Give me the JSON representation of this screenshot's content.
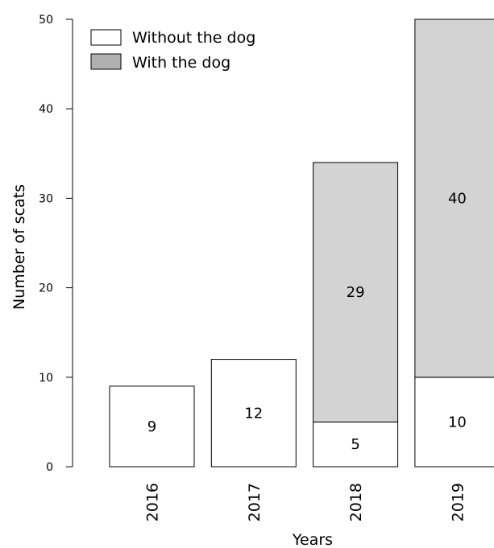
{
  "chart_data": {
    "type": "bar",
    "stacked": true,
    "categories": [
      "2016",
      "2017",
      "2018",
      "2019"
    ],
    "series": [
      {
        "name": "Without the dog",
        "values": [
          9,
          12,
          5,
          10
        ],
        "color": "#ffffff"
      },
      {
        "name": "With the dog",
        "values": [
          0,
          0,
          29,
          40
        ],
        "color": "#d3d3d3"
      }
    ],
    "xlabel": "Years",
    "ylabel": "Number of scats",
    "ylim": [
      0,
      50
    ],
    "yticks": [
      0,
      10,
      20,
      30,
      40,
      50
    ],
    "grid": false,
    "legend_position": "top-left"
  }
}
